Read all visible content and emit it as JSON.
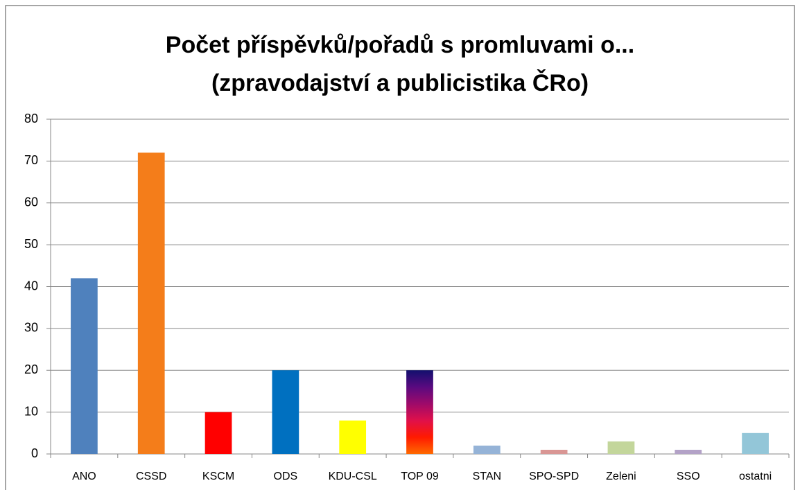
{
  "chart_data": {
    "type": "bar",
    "title": [
      "Počet příspěvků/pořadů s promluvami o...",
      "(zpravodajství a publicistika ČRo)"
    ],
    "categories": [
      "ANO",
      "CSSD",
      "KSCM",
      "ODS",
      "KDU-CSL",
      "TOP 09",
      "STAN",
      "SPO-SPD",
      "Zeleni",
      "SSO",
      "ostatni"
    ],
    "values": [
      42,
      72,
      10,
      20,
      8,
      20,
      2,
      1,
      3,
      1,
      5
    ],
    "colors": [
      "#4f81bd",
      "#f47d1a",
      "#ff0000",
      "#0070c0",
      "#ffff00",
      [
        "#12106e",
        "#5a0a80",
        "#9e0a6a",
        "#e0104a",
        "#ff1a00",
        "#ff6a00"
      ],
      "#95b3d7",
      "#d99694",
      "#c3d69b",
      "#b3a2c7",
      "#93c6d8"
    ],
    "ylim": [
      0,
      80
    ],
    "yticks": [
      0,
      10,
      20,
      30,
      40,
      50,
      60,
      70,
      80
    ],
    "grid": true
  }
}
